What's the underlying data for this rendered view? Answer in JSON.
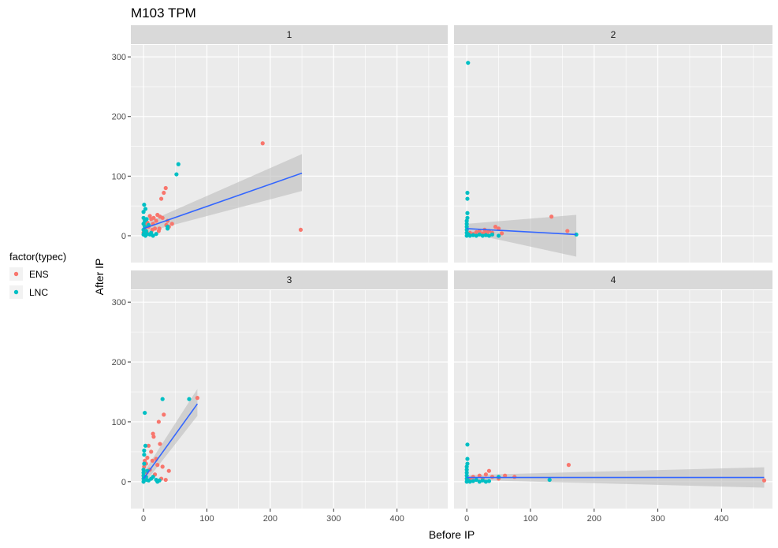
{
  "chart_data": {
    "type": "scatter",
    "title": "M103 TPM",
    "xlabel": "Before IP",
    "ylabel": "After IP",
    "xlim": [
      -20,
      480
    ],
    "ylim": [
      -45,
      320
    ],
    "x_ticks": [
      0,
      100,
      200,
      300,
      400
    ],
    "y_ticks": [
      0,
      100,
      200,
      300
    ],
    "grid": true,
    "legend": {
      "title": "factor(typec)",
      "placement": "left",
      "entries": [
        {
          "label": "ENS",
          "color": "#F8766D"
        },
        {
          "label": "LNC",
          "color": "#00BFC4"
        }
      ]
    },
    "colors": {
      "panel_bg": "#EBEBEB",
      "strip_bg": "#D9D9D9",
      "grid": "#FFFFFF",
      "fit_line": "#3366FF",
      "ribbon": "#BDBDBD"
    },
    "facets": [
      {
        "label": "1",
        "x_range": [
          -20,
          480
        ],
        "series": [
          {
            "name": "ENS",
            "points": [
              [
                0,
                5
              ],
              [
                1,
                8
              ],
              [
                2,
                12
              ],
              [
                3,
                3
              ],
              [
                4,
                18
              ],
              [
                5,
                6
              ],
              [
                6,
                22
              ],
              [
                8,
                15
              ],
              [
                10,
                33
              ],
              [
                12,
                28
              ],
              [
                14,
                10
              ],
              [
                15,
                20
              ],
              [
                16,
                30
              ],
              [
                18,
                12
              ],
              [
                20,
                25
              ],
              [
                22,
                35
              ],
              [
                24,
                8
              ],
              [
                25,
                12
              ],
              [
                26,
                32
              ],
              [
                28,
                62
              ],
              [
                30,
                30
              ],
              [
                32,
                72
              ],
              [
                35,
                80
              ],
              [
                36,
                18
              ],
              [
                38,
                25
              ],
              [
                40,
                15
              ],
              [
                45,
                20
              ],
              [
                188,
                155
              ],
              [
                248,
                10
              ]
            ]
          },
          {
            "name": "LNC",
            "points": [
              [
                0,
                2
              ],
              [
                0,
                10
              ],
              [
                0,
                20
              ],
              [
                0,
                30
              ],
              [
                0,
                40
              ],
              [
                1,
                52
              ],
              [
                1,
                5
              ],
              [
                2,
                15
              ],
              [
                2,
                25
              ],
              [
                3,
                0
              ],
              [
                3,
                45
              ],
              [
                4,
                8
              ],
              [
                5,
                28
              ],
              [
                6,
                3
              ],
              [
                8,
                18
              ],
              [
                10,
                2
              ],
              [
                12,
                5
              ],
              [
                15,
                0
              ],
              [
                20,
                3
              ],
              [
                38,
                15
              ],
              [
                38,
                12
              ],
              [
                55,
                120
              ],
              [
                52,
                103
              ]
            ]
          }
        ],
        "fit": {
          "x": [
            0,
            250
          ],
          "y": [
            12,
            105
          ],
          "ci_low": [
            5,
            75
          ],
          "ci_high": [
            20,
            137
          ]
        }
      },
      {
        "label": "2",
        "x_range": [
          -20,
          480
        ],
        "series": [
          {
            "name": "ENS",
            "points": [
              [
                5,
                5
              ],
              [
                10,
                3
              ],
              [
                15,
                6
              ],
              [
                20,
                8
              ],
              [
                25,
                4
              ],
              [
                28,
                10
              ],
              [
                30,
                6
              ],
              [
                32,
                3
              ],
              [
                35,
                8
              ],
              [
                40,
                5
              ],
              [
                45,
                15
              ],
              [
                50,
                12
              ],
              [
                55,
                4
              ],
              [
                133,
                32
              ],
              [
                158,
                8
              ]
            ]
          },
          {
            "name": "LNC",
            "points": [
              [
                0,
                0
              ],
              [
                0,
                5
              ],
              [
                0,
                10
              ],
              [
                0,
                15
              ],
              [
                0,
                20
              ],
              [
                0,
                25
              ],
              [
                1,
                30
              ],
              [
                1,
                38
              ],
              [
                1,
                62
              ],
              [
                1,
                72
              ],
              [
                2,
                290
              ],
              [
                3,
                2
              ],
              [
                5,
                0
              ],
              [
                10,
                1
              ],
              [
                15,
                0
              ],
              [
                20,
                2
              ],
              [
                25,
                0
              ],
              [
                30,
                1
              ],
              [
                35,
                0
              ],
              [
                40,
                2
              ],
              [
                50,
                0
              ],
              [
                172,
                2
              ]
            ]
          }
        ],
        "fit": {
          "x": [
            0,
            172
          ],
          "y": [
            12,
            2
          ],
          "ci_low": [
            5,
            -35
          ],
          "ci_high": [
            20,
            35
          ]
        }
      },
      {
        "label": "3",
        "x_range": [
          -20,
          480
        ],
        "series": [
          {
            "name": "ENS",
            "points": [
              [
                0,
                10
              ],
              [
                1,
                25
              ],
              [
                2,
                35
              ],
              [
                3,
                5
              ],
              [
                4,
                30
              ],
              [
                5,
                15
              ],
              [
                6,
                40
              ],
              [
                8,
                60
              ],
              [
                10,
                20
              ],
              [
                12,
                50
              ],
              [
                14,
                35
              ],
              [
                15,
                80
              ],
              [
                16,
                75
              ],
              [
                18,
                12
              ],
              [
                20,
                38
              ],
              [
                22,
                28
              ],
              [
                24,
                100
              ],
              [
                26,
                63
              ],
              [
                28,
                5
              ],
              [
                30,
                25
              ],
              [
                32,
                112
              ],
              [
                35,
                3
              ],
              [
                40,
                18
              ],
              [
                85,
                140
              ]
            ]
          },
          {
            "name": "LNC",
            "points": [
              [
                0,
                0
              ],
              [
                0,
                5
              ],
              [
                0,
                10
              ],
              [
                0,
                15
              ],
              [
                0,
                20
              ],
              [
                1,
                30
              ],
              [
                1,
                45
              ],
              [
                1,
                52
              ],
              [
                2,
                115
              ],
              [
                3,
                60
              ],
              [
                4,
                8
              ],
              [
                5,
                3
              ],
              [
                6,
                18
              ],
              [
                8,
                2
              ],
              [
                12,
                5
              ],
              [
                15,
                8
              ],
              [
                20,
                3
              ],
              [
                22,
                0
              ],
              [
                25,
                2
              ],
              [
                30,
                138
              ],
              [
                72,
                138
              ]
            ]
          }
        ],
        "fit": {
          "x": [
            0,
            85
          ],
          "y": [
            5,
            130
          ],
          "ci_low": [
            -5,
            110
          ],
          "ci_high": [
            15,
            155
          ]
        }
      },
      {
        "label": "4",
        "x_range": [
          -20,
          480
        ],
        "series": [
          {
            "name": "ENS",
            "points": [
              [
                5,
                5
              ],
              [
                10,
                8
              ],
              [
                15,
                3
              ],
              [
                20,
                10
              ],
              [
                25,
                5
              ],
              [
                30,
                12
              ],
              [
                35,
                18
              ],
              [
                40,
                8
              ],
              [
                50,
                5
              ],
              [
                60,
                10
              ],
              [
                75,
                8
              ],
              [
                160,
                28
              ],
              [
                467,
                2
              ]
            ]
          },
          {
            "name": "LNC",
            "points": [
              [
                0,
                0
              ],
              [
                0,
                5
              ],
              [
                0,
                10
              ],
              [
                0,
                15
              ],
              [
                0,
                20
              ],
              [
                0,
                25
              ],
              [
                1,
                30
              ],
              [
                1,
                38
              ],
              [
                1,
                62
              ],
              [
                2,
                2
              ],
              [
                5,
                0
              ],
              [
                10,
                1
              ],
              [
                15,
                3
              ],
              [
                20,
                0
              ],
              [
                25,
                2
              ],
              [
                30,
                0
              ],
              [
                35,
                1
              ],
              [
                50,
                8
              ],
              [
                130,
                3
              ]
            ]
          }
        ],
        "fit": {
          "x": [
            0,
            467
          ],
          "y": [
            7,
            7
          ],
          "ci_low": [
            3,
            -10
          ],
          "ci_high": [
            11,
            24
          ]
        }
      }
    ]
  }
}
